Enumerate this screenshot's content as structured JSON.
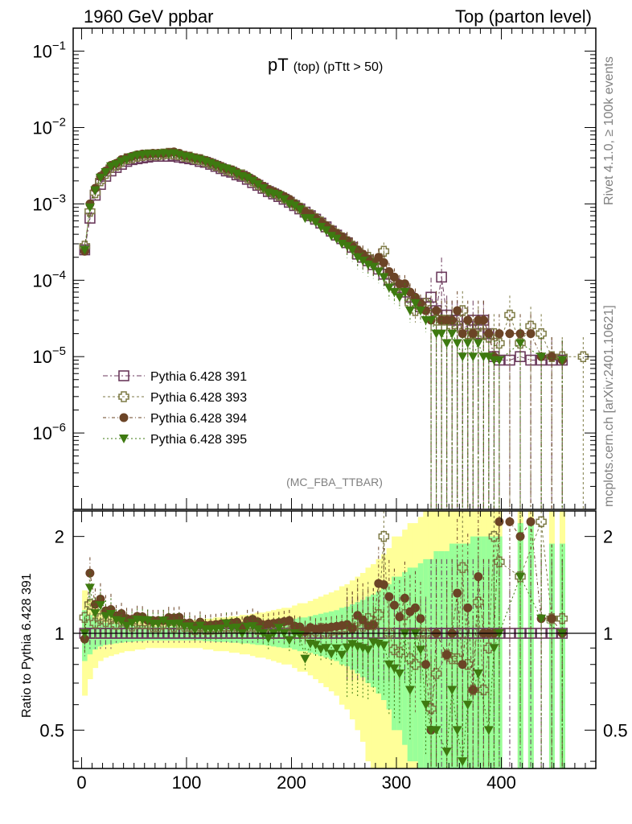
{
  "header": {
    "left": "1960 GeV ppbar",
    "right": "Top (parton level)"
  },
  "side_labels": {
    "rivet": "Rivet 4.1.0, ≥ 100k events",
    "mcplots": "mcplots.cern.ch [arXiv:2401.10621]"
  },
  "chart_data": {
    "type": "scatter",
    "title": "pT",
    "title_sub": "(top) (pTtt > 50)",
    "watermark": "(MC_FBA_TTBAR)",
    "xlabel": "",
    "ylabel": "",
    "ratio_ylabel": "Ratio to Pythia 6.428 391",
    "xlim": [
      -8,
      490
    ],
    "ylim": [
      1e-07,
      0.2
    ],
    "yscale": "log",
    "ratio_ylim": [
      0.38,
      2.4
    ],
    "xticks": [
      0,
      100,
      200,
      300,
      400
    ],
    "xtick_labels": [
      "0",
      "100",
      "200",
      "300",
      "400"
    ],
    "ytick_exponents": [
      -1,
      -2,
      -3,
      -4,
      -5,
      -6
    ],
    "ratio_yticks": [
      0.5,
      1,
      2
    ],
    "ratio_ytick_labels": [
      "0.5",
      "1",
      "2"
    ],
    "legend": [
      {
        "name": "Pythia 6.428 391",
        "color": "#6b3a5c",
        "marker": "open-square"
      },
      {
        "name": "Pythia 6.428 393",
        "color": "#7d7a45",
        "marker": "open-cross"
      },
      {
        "name": "Pythia 6.428 394",
        "color": "#6b4426",
        "marker": "filled-circle"
      },
      {
        "name": "Pythia 6.428 395",
        "color": "#3e7a10",
        "marker": "filled-triangle-down"
      }
    ],
    "band_colors": {
      "outer": "#ffff99",
      "inner": "#99ff99"
    },
    "series": [
      {
        "name": "Pythia 6.428 391",
        "x": [
          3,
          8,
          13,
          18,
          23,
          28,
          33,
          38,
          43,
          48,
          53,
          58,
          63,
          68,
          73,
          78,
          83,
          88,
          93,
          98,
          103,
          108,
          113,
          118,
          123,
          128,
          133,
          138,
          143,
          148,
          153,
          158,
          163,
          168,
          173,
          178,
          183,
          188,
          193,
          198,
          203,
          208,
          213,
          218,
          223,
          228,
          233,
          238,
          243,
          248,
          253,
          258,
          263,
          268,
          273,
          278,
          283,
          288,
          293,
          298,
          303,
          308,
          313,
          318,
          323,
          328,
          333,
          338,
          343,
          348,
          353,
          358,
          363,
          368,
          373,
          378,
          383,
          388,
          393,
          398,
          408,
          418,
          428,
          438,
          448,
          458
        ],
        "y": [
          0.00025,
          0.00065,
          0.0013,
          0.0018,
          0.0023,
          0.0027,
          0.003,
          0.0033,
          0.0036,
          0.0038,
          0.0039,
          0.004,
          0.0041,
          0.0042,
          0.0042,
          0.0042,
          0.0042,
          0.0043,
          0.0041,
          0.004,
          0.0039,
          0.0038,
          0.0036,
          0.0035,
          0.0033,
          0.0031,
          0.0029,
          0.0027,
          0.0026,
          0.0024,
          0.0023,
          0.0021,
          0.0019,
          0.00175,
          0.0016,
          0.00145,
          0.00135,
          0.00125,
          0.00115,
          0.00105,
          0.00095,
          0.00086,
          0.00078,
          0.0007,
          0.00063,
          0.00056,
          0.0005,
          0.00044,
          0.00039,
          0.00035,
          0.00031,
          0.00027,
          0.00022,
          0.0002,
          0.00018,
          0.00016,
          0.00014,
          0.00012,
          0.0001,
          9e-05,
          8e-05,
          7e-05,
          6e-05,
          5e-05,
          4.5e-05,
          5e-05,
          6e-05,
          4e-05,
          0.00011,
          3.5e-05,
          3e-05,
          3e-05,
          2.5e-05,
          2.5e-05,
          3e-05,
          2e-05,
          3e-05,
          2e-05,
          1e-05,
          9e-06,
          9e-06,
          1e-05,
          9e-06,
          9e-06,
          9e-06,
          9e-06
        ],
        "ratio": []
      },
      {
        "name": "Pythia 6.428 393",
        "x": [
          3,
          8,
          13,
          18,
          23,
          28,
          33,
          38,
          43,
          48,
          53,
          58,
          63,
          68,
          73,
          78,
          83,
          88,
          93,
          98,
          103,
          108,
          113,
          118,
          123,
          128,
          133,
          138,
          143,
          148,
          153,
          158,
          163,
          168,
          173,
          178,
          183,
          188,
          193,
          198,
          203,
          208,
          213,
          218,
          223,
          228,
          233,
          238,
          243,
          248,
          253,
          258,
          263,
          268,
          273,
          278,
          283,
          288,
          293,
          298,
          303,
          308,
          313,
          318,
          323,
          328,
          333,
          338,
          343,
          348,
          353,
          358,
          363,
          368,
          373,
          378,
          383,
          388,
          393,
          398,
          408,
          418,
          428,
          438,
          448,
          458,
          478
        ],
        "y": [
          0.00028,
          0.0008,
          0.0014,
          0.002,
          0.0025,
          0.003,
          0.0032,
          0.0036,
          0.0039,
          0.004,
          0.0042,
          0.0043,
          0.0044,
          0.0044,
          0.0044,
          0.0045,
          0.0046,
          0.0045,
          0.0044,
          0.0042,
          0.0041,
          0.0039,
          0.0038,
          0.0036,
          0.0034,
          0.0032,
          0.003,
          0.0028,
          0.0027,
          0.0025,
          0.0024,
          0.0022,
          0.002,
          0.0018,
          0.00165,
          0.0015,
          0.0014,
          0.0013,
          0.0012,
          0.0011,
          0.00098,
          0.00088,
          0.00078,
          0.00072,
          0.00064,
          0.00058,
          0.0005,
          0.00045,
          0.0004,
          0.00036,
          0.00032,
          0.00028,
          0.00024,
          0.00021,
          0.0002,
          0.00017,
          0.00016,
          0.00024,
          0.0001,
          8e-05,
          7e-05,
          8e-05,
          5e-05,
          4e-05,
          4.5e-05,
          5e-05,
          3.5e-05,
          3e-05,
          3e-05,
          3e-05,
          2.5e-05,
          2.5e-05,
          4e-05,
          2e-05,
          2e-05,
          2.5e-05,
          2e-05,
          1.8e-05,
          2e-05,
          1.5e-05,
          3.5e-05,
          1.5e-05,
          2.5e-05,
          2e-05,
          1e-05,
          1e-05,
          1e-05
        ],
        "ratio": []
      },
      {
        "name": "Pythia 6.428 394",
        "x": [
          3,
          8,
          13,
          18,
          23,
          28,
          33,
          38,
          43,
          48,
          53,
          58,
          63,
          68,
          73,
          78,
          83,
          88,
          93,
          98,
          103,
          108,
          113,
          118,
          123,
          128,
          133,
          138,
          143,
          148,
          153,
          158,
          163,
          168,
          173,
          178,
          183,
          188,
          193,
          198,
          203,
          208,
          213,
          218,
          223,
          228,
          233,
          238,
          243,
          248,
          253,
          258,
          263,
          268,
          273,
          278,
          283,
          288,
          293,
          298,
          303,
          308,
          313,
          318,
          323,
          328,
          333,
          338,
          343,
          348,
          353,
          358,
          363,
          368,
          373,
          378,
          383,
          388,
          393,
          398,
          408,
          418,
          428,
          438,
          448,
          458
        ],
        "y": [
          0.00024,
          0.001,
          0.0016,
          0.0023,
          0.0027,
          0.0032,
          0.0034,
          0.0038,
          0.004,
          0.0042,
          0.0044,
          0.0045,
          0.0045,
          0.0046,
          0.0046,
          0.0046,
          0.0047,
          0.0048,
          0.0046,
          0.0043,
          0.0042,
          0.004,
          0.0039,
          0.0037,
          0.0035,
          0.0033,
          0.0031,
          0.0029,
          0.0028,
          0.0026,
          0.0024,
          0.0023,
          0.0021,
          0.0019,
          0.0017,
          0.00155,
          0.00145,
          0.00135,
          0.00125,
          0.00115,
          0.001,
          0.0009,
          0.00079,
          0.00073,
          0.00065,
          0.00058,
          0.00052,
          0.00046,
          0.00041,
          0.00037,
          0.00033,
          0.00028,
          0.00025,
          0.00022,
          0.00019,
          0.00017,
          0.0002,
          0.00017,
          0.00013,
          0.00011,
          9e-05,
          9e-05,
          7e-05,
          6e-05,
          5e-05,
          4e-05,
          3e-05,
          4e-05,
          3e-05,
          3e-05,
          3e-05,
          4e-05,
          2e-05,
          3e-05,
          2e-05,
          3e-05,
          3e-05,
          2e-05,
          1e-05,
          2e-05,
          2e-05,
          2e-05,
          2e-05,
          1e-05,
          1e-05,
          9e-06
        ],
        "ratio": []
      },
      {
        "name": "Pythia 6.428 395",
        "x": [
          3,
          8,
          13,
          18,
          23,
          28,
          33,
          38,
          43,
          48,
          53,
          58,
          63,
          68,
          73,
          78,
          83,
          88,
          93,
          98,
          103,
          108,
          113,
          118,
          123,
          128,
          133,
          138,
          143,
          148,
          153,
          158,
          163,
          168,
          173,
          178,
          183,
          188,
          193,
          198,
          203,
          208,
          213,
          218,
          223,
          228,
          233,
          238,
          243,
          248,
          253,
          258,
          263,
          268,
          273,
          278,
          283,
          288,
          293,
          298,
          303,
          308,
          313,
          318,
          323,
          328,
          333,
          338,
          343,
          348,
          353,
          358,
          363,
          368,
          373,
          378,
          383,
          388,
          393,
          398,
          418,
          438,
          458
        ],
        "y": [
          0.00025,
          0.0009,
          0.0015,
          0.0022,
          0.0026,
          0.0031,
          0.0033,
          0.0036,
          0.0038,
          0.0041,
          0.0043,
          0.0044,
          0.0045,
          0.0045,
          0.0045,
          0.0046,
          0.0045,
          0.0046,
          0.0044,
          0.0042,
          0.0041,
          0.0039,
          0.0038,
          0.0036,
          0.0034,
          0.0032,
          0.003,
          0.0029,
          0.0027,
          0.0025,
          0.0023,
          0.0022,
          0.002,
          0.0018,
          0.0016,
          0.0014,
          0.00135,
          0.0013,
          0.00115,
          0.001,
          0.00095,
          0.00085,
          0.00065,
          0.00065,
          0.00058,
          0.0005,
          0.00045,
          0.00038,
          0.00035,
          0.0003,
          0.00028,
          0.00025,
          0.0002,
          0.00018,
          0.00016,
          0.00015,
          0.00013,
          0.00011,
          8e-05,
          7e-05,
          6e-05,
          7e-05,
          4e-05,
          5e-05,
          4e-05,
          3e-05,
          3e-05,
          2e-05,
          2e-05,
          1.5e-05,
          2e-05,
          1.5e-05,
          1e-05,
          1.5e-05,
          1e-05,
          1.5e-05,
          1e-05,
          1e-05,
          9e-06,
          9e-06,
          1.5e-05,
          1e-05,
          9e-06
        ],
        "ratio": []
      }
    ],
    "band_x": [
      3,
      8,
      13,
      18,
      23,
      28,
      33,
      38,
      43,
      48,
      53,
      58,
      63,
      68,
      73,
      78,
      83,
      88,
      93,
      98,
      103,
      108,
      113,
      118,
      123,
      128,
      133,
      138,
      143,
      148,
      153,
      158,
      163,
      168,
      173,
      178,
      183,
      188,
      193,
      198,
      203,
      208,
      213,
      218,
      223,
      228,
      233,
      238,
      243,
      248,
      253,
      258,
      263,
      268,
      273,
      278,
      283,
      288,
      293,
      298,
      303,
      308,
      313,
      318,
      323,
      328,
      333,
      338,
      343,
      348,
      353,
      358,
      363,
      368,
      373,
      378,
      383,
      388,
      393,
      398,
      408,
      418,
      428,
      438,
      448,
      458
    ],
    "band_inner_half": [
      0.18,
      0.14,
      0.11,
      0.09,
      0.08,
      0.075,
      0.07,
      0.065,
      0.06,
      0.06,
      0.055,
      0.055,
      0.05,
      0.05,
      0.05,
      0.05,
      0.05,
      0.05,
      0.05,
      0.05,
      0.05,
      0.05,
      0.05,
      0.055,
      0.055,
      0.06,
      0.06,
      0.06,
      0.065,
      0.065,
      0.07,
      0.07,
      0.075,
      0.08,
      0.08,
      0.085,
      0.09,
      0.095,
      0.1,
      0.1,
      0.11,
      0.12,
      0.12,
      0.13,
      0.14,
      0.15,
      0.16,
      0.17,
      0.18,
      0.2,
      0.21,
      0.23,
      0.25,
      0.27,
      0.3,
      0.32,
      0.35,
      0.38,
      0.42,
      0.5,
      0.5,
      0.55,
      0.6,
      0.6,
      0.65,
      0.7,
      0.7,
      0.8,
      0.8,
      0.8,
      0.9,
      0.9,
      0.9,
      0.9,
      1.0,
      1.0,
      1.0,
      1.0,
      1.0,
      1.0,
      0.0,
      1.2,
      1.2,
      0.0,
      0.9,
      0.9
    ],
    "band_outer_half": [
      0.36,
      0.28,
      0.22,
      0.18,
      0.16,
      0.15,
      0.14,
      0.13,
      0.12,
      0.12,
      0.11,
      0.11,
      0.1,
      0.1,
      0.1,
      0.1,
      0.1,
      0.1,
      0.1,
      0.1,
      0.1,
      0.1,
      0.1,
      0.11,
      0.11,
      0.12,
      0.12,
      0.12,
      0.13,
      0.13,
      0.14,
      0.14,
      0.15,
      0.16,
      0.16,
      0.17,
      0.18,
      0.19,
      0.2,
      0.2,
      0.22,
      0.24,
      0.24,
      0.26,
      0.28,
      0.3,
      0.32,
      0.34,
      0.36,
      0.4,
      0.42,
      0.46,
      0.5,
      0.54,
      0.6,
      0.64,
      0.7,
      0.76,
      0.84,
      1.0,
      1.0,
      1.1,
      1.2,
      1.2,
      1.3,
      1.4,
      1.4,
      1.6,
      1.6,
      1.6,
      1.8,
      1.8,
      1.8,
      1.8,
      2.0,
      2.0,
      2.0,
      2.0,
      2.0,
      2.0,
      0.0,
      2.4,
      2.4,
      0.0,
      1.8,
      1.8
    ]
  }
}
